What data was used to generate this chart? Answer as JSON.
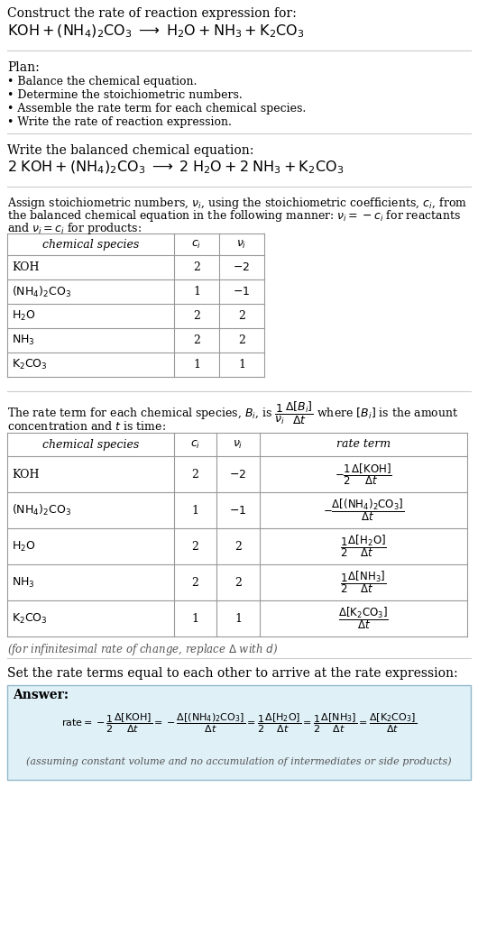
{
  "bg_color": "#ffffff",
  "text_color": "#000000",
  "gray_text": "#555555",
  "title_line1": "Construct the rate of reaction expression for:",
  "plan_header": "Plan:",
  "plan_items": [
    "• Balance the chemical equation.",
    "• Determine the stoichiometric numbers.",
    "• Assemble the rate term for each chemical species.",
    "• Write the rate of reaction expression."
  ],
  "balanced_header": "Write the balanced chemical equation:",
  "stoich_header_line1": "Assign stoichiometric numbers, $\\nu_i$, using the stoichiometric coefficients, $c_i$, from",
  "stoich_header_line2": "the balanced chemical equation in the following manner: $\\nu_i = -c_i$ for reactants",
  "stoich_header_line3": "and $\\nu_i = c_i$ for products:",
  "table1_cols": [
    "chemical species",
    "$c_i$",
    "$\\nu_i$"
  ],
  "table1_rows": [
    [
      "KOH",
      "2",
      "$-2$"
    ],
    [
      "$(\\mathrm{NH_4})_2\\mathrm{CO_3}$",
      "1",
      "$-1$"
    ],
    [
      "$\\mathrm{H_2O}$",
      "2",
      "2"
    ],
    [
      "$\\mathrm{NH_3}$",
      "2",
      "2"
    ],
    [
      "$\\mathrm{K_2CO_3}$",
      "1",
      "1"
    ]
  ],
  "rate_term_header_line2": "concentration and $t$ is time:",
  "table2_cols": [
    "chemical species",
    "$c_i$",
    "$\\nu_i$",
    "rate term"
  ],
  "table2_rows": [
    [
      "KOH",
      "2",
      "$-2$",
      "$-\\dfrac{1}{2}\\dfrac{\\Delta[\\mathrm{KOH}]}{\\Delta t}$"
    ],
    [
      "$(\\mathrm{NH_4})_2\\mathrm{CO_3}$",
      "1",
      "$-1$",
      "$-\\dfrac{\\Delta[(\\mathrm{NH_4})_2\\mathrm{CO_3}]}{\\Delta t}$"
    ],
    [
      "$\\mathrm{H_2O}$",
      "2",
      "2",
      "$\\dfrac{1}{2}\\dfrac{\\Delta[\\mathrm{H_2O}]}{\\Delta t}$"
    ],
    [
      "$\\mathrm{NH_3}$",
      "2",
      "2",
      "$\\dfrac{1}{2}\\dfrac{\\Delta[\\mathrm{NH_3}]}{\\Delta t}$"
    ],
    [
      "$\\mathrm{K_2CO_3}$",
      "1",
      "1",
      "$\\dfrac{\\Delta[\\mathrm{K_2CO_3}]}{\\Delta t}$"
    ]
  ],
  "infinitesimal_note": "(for infinitesimal rate of change, replace $\\Delta$ with $d$)",
  "set_equal_header": "Set the rate terms equal to each other to arrive at the rate expression:",
  "answer_box_color": "#dff0f7",
  "answer_box_border": "#90b8cc",
  "answer_label": "Answer:",
  "answer_note": "(assuming constant volume and no accumulation of intermediates or side products)",
  "divider_color": "#cccccc",
  "table_line_color": "#999999"
}
